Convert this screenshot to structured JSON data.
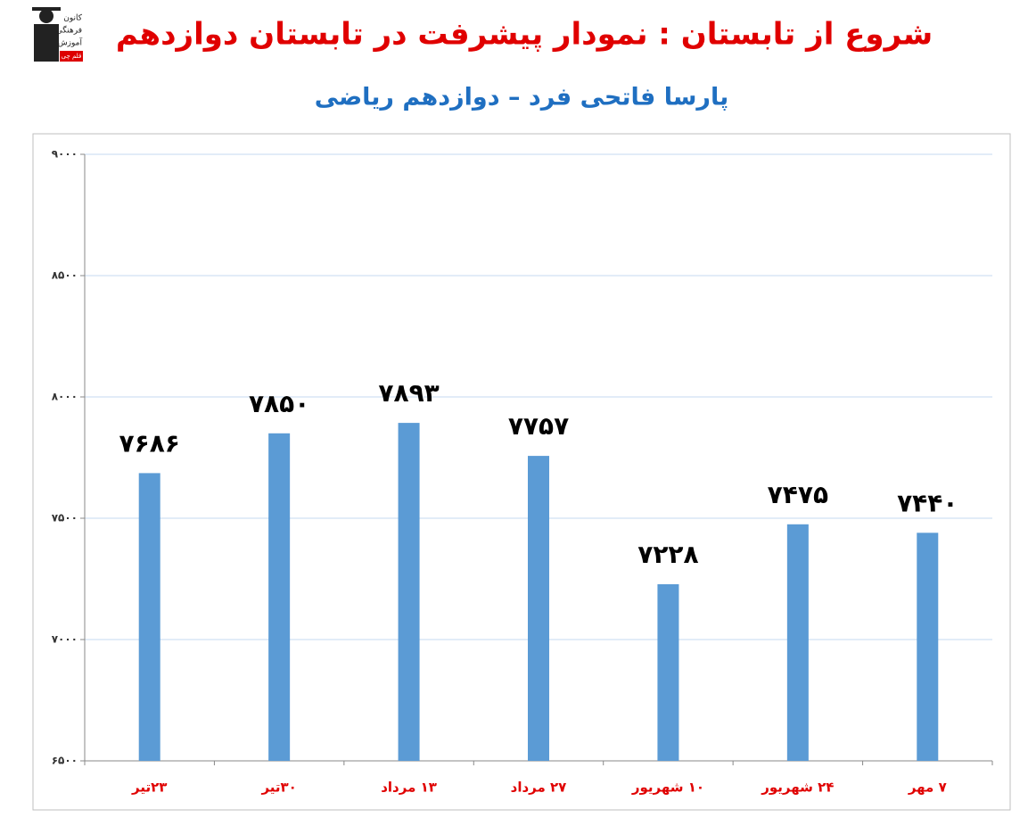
{
  "logo": {
    "lines": [
      "کانون",
      "فرهنگی",
      "آموزش",
      "قلم چی"
    ]
  },
  "chart_data": {
    "type": "bar",
    "title": "شروع از تابستان : نمودار پیشرفت در تابستان دوازدهم",
    "subtitle": "پارسا فاتحی فرد – دوازدهم ریاضی",
    "categories": [
      "۲۳تیر",
      "۳۰تیر",
      "۱۳ مرداد",
      "۲۷ مرداد",
      "۱۰ شهریور",
      "۲۴ شهریور",
      "۷ مهر"
    ],
    "values": [
      7686,
      7850,
      7893,
      7757,
      7228,
      7475,
      7440
    ],
    "value_labels": [
      "۷۶۸۶",
      "۷۸۵۰",
      "۷۸۹۳",
      "۷۷۵۷",
      "۷۲۲۸",
      "۷۴۷۵",
      "۷۴۴۰"
    ],
    "color": "#5b9bd5",
    "ylim": [
      6500,
      9000
    ],
    "yticks": [
      {
        "value": 6500,
        "label": "۶۵۰۰"
      },
      {
        "value": 7000,
        "label": "۷۰۰۰"
      },
      {
        "value": 7500,
        "label": "۷۵۰۰"
      },
      {
        "value": 8000,
        "label": "۸۰۰۰"
      },
      {
        "value": 8500,
        "label": "۸۵۰۰"
      },
      {
        "value": 9000,
        "label": "۹۰۰۰"
      }
    ],
    "grid": true
  }
}
